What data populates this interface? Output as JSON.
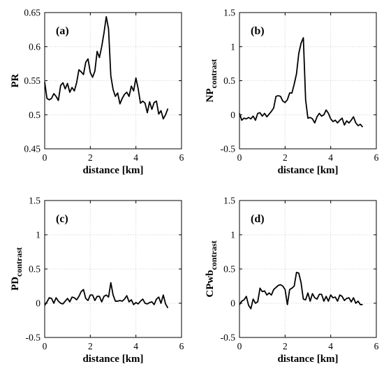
{
  "chart_data": [
    {
      "type": "line",
      "panel_label": "(a)",
      "xlabel": "distance [km]",
      "ylabel": "PR",
      "ylabel_sub": "",
      "xlim": [
        0,
        6
      ],
      "ylim": [
        0.45,
        0.65
      ],
      "xticks": [
        "0",
        "2",
        "4",
        "6"
      ],
      "yticks": [
        "0.45",
        "0.5",
        "0.55",
        "0.6",
        "0.65"
      ],
      "grid": true,
      "x": [
        0,
        0.1,
        0.2,
        0.3,
        0.4,
        0.5,
        0.6,
        0.7,
        0.8,
        0.9,
        1.0,
        1.1,
        1.2,
        1.3,
        1.4,
        1.5,
        1.6,
        1.7,
        1.8,
        1.9,
        2.0,
        2.1,
        2.2,
        2.3,
        2.4,
        2.5,
        2.6,
        2.7,
        2.8,
        2.9,
        3.0,
        3.1,
        3.2,
        3.3,
        3.4,
        3.5,
        3.6,
        3.7,
        3.8,
        3.9,
        4.0,
        4.1,
        4.2,
        4.3,
        4.4,
        4.5,
        4.6,
        4.7,
        4.8,
        4.9,
        5.0,
        5.1,
        5.2,
        5.3,
        5.4
      ],
      "y": [
        0.548,
        0.524,
        0.522,
        0.524,
        0.531,
        0.527,
        0.521,
        0.543,
        0.547,
        0.538,
        0.546,
        0.533,
        0.54,
        0.535,
        0.547,
        0.566,
        0.563,
        0.559,
        0.577,
        0.582,
        0.562,
        0.555,
        0.564,
        0.593,
        0.584,
        0.6,
        0.62,
        0.644,
        0.626,
        0.557,
        0.537,
        0.527,
        0.532,
        0.516,
        0.524,
        0.53,
        0.533,
        0.527,
        0.542,
        0.535,
        0.554,
        0.538,
        0.517,
        0.52,
        0.517,
        0.503,
        0.519,
        0.508,
        0.518,
        0.52,
        0.501,
        0.506,
        0.494,
        0.5,
        0.509
      ]
    },
    {
      "type": "line",
      "panel_label": "(b)",
      "xlabel": "distance [km]",
      "ylabel": "NP",
      "ylabel_sub": "contrast",
      "xlim": [
        0,
        6
      ],
      "ylim": [
        -0.5,
        1.5
      ],
      "xticks": [
        "0",
        "2",
        "4",
        "6"
      ],
      "yticks": [
        "-0.5",
        "0",
        "0.5",
        "1",
        "1.5"
      ],
      "grid": true,
      "x": [
        0,
        0.1,
        0.2,
        0.3,
        0.4,
        0.5,
        0.6,
        0.7,
        0.8,
        0.9,
        1.0,
        1.1,
        1.2,
        1.3,
        1.4,
        1.5,
        1.6,
        1.7,
        1.8,
        1.9,
        2.0,
        2.1,
        2.2,
        2.3,
        2.4,
        2.5,
        2.6,
        2.7,
        2.8,
        2.9,
        3.0,
        3.1,
        3.2,
        3.3,
        3.4,
        3.5,
        3.6,
        3.7,
        3.8,
        3.9,
        4.0,
        4.1,
        4.2,
        4.3,
        4.4,
        4.5,
        4.6,
        4.7,
        4.8,
        4.9,
        5.0,
        5.1,
        5.2,
        5.3,
        5.4
      ],
      "y": [
        0.02,
        -0.08,
        -0.05,
        -0.06,
        -0.04,
        -0.06,
        -0.02,
        -0.08,
        0.02,
        0.03,
        -0.02,
        0.02,
        -0.03,
        0.01,
        0.05,
        0.1,
        0.27,
        0.28,
        0.27,
        0.2,
        0.18,
        0.22,
        0.32,
        0.32,
        0.45,
        0.6,
        0.9,
        1.05,
        1.13,
        0.22,
        -0.05,
        -0.04,
        -0.06,
        -0.12,
        -0.03,
        0.02,
        -0.02,
        0.0,
        0.07,
        0.02,
        -0.06,
        -0.1,
        -0.08,
        -0.12,
        -0.08,
        -0.05,
        -0.15,
        -0.09,
        -0.12,
        -0.08,
        -0.03,
        -0.12,
        -0.16,
        -0.14,
        -0.18
      ]
    },
    {
      "type": "line",
      "panel_label": "(c)",
      "xlabel": "distance [km]",
      "ylabel": "PD",
      "ylabel_sub": "contrast",
      "xlim": [
        0,
        6
      ],
      "ylim": [
        -0.5,
        1.5
      ],
      "xticks": [
        "0",
        "2",
        "4",
        "6"
      ],
      "yticks": [
        "-0.5",
        "0",
        "0.5",
        "1",
        "1.5"
      ],
      "grid": true,
      "x": [
        0,
        0.1,
        0.2,
        0.3,
        0.4,
        0.5,
        0.6,
        0.7,
        0.8,
        0.9,
        1.0,
        1.1,
        1.2,
        1.3,
        1.4,
        1.5,
        1.6,
        1.7,
        1.8,
        1.9,
        2.0,
        2.1,
        2.2,
        2.3,
        2.4,
        2.5,
        2.6,
        2.7,
        2.8,
        2.9,
        3.0,
        3.1,
        3.2,
        3.3,
        3.4,
        3.5,
        3.6,
        3.7,
        3.8,
        3.9,
        4.0,
        4.1,
        4.2,
        4.3,
        4.4,
        4.5,
        4.6,
        4.7,
        4.8,
        4.9,
        5.0,
        5.1,
        5.2,
        5.3,
        5.4
      ],
      "y": [
        -0.03,
        0.02,
        0.08,
        0.07,
        0.0,
        0.08,
        0.03,
        0.0,
        -0.01,
        0.03,
        0.07,
        0.02,
        0.09,
        0.08,
        0.05,
        0.1,
        0.17,
        0.2,
        0.07,
        0.04,
        0.12,
        0.12,
        0.04,
        0.1,
        0.1,
        0.02,
        0.1,
        0.12,
        0.09,
        0.3,
        0.12,
        0.03,
        0.03,
        0.04,
        0.03,
        0.06,
        0.11,
        0.02,
        0.05,
        -0.02,
        0.01,
        -0.01,
        0.03,
        0.06,
        0.0,
        -0.01,
        0.01,
        0.02,
        -0.02,
        0.06,
        0.09,
        0.0,
        0.12,
        -0.01,
        -0.07
      ]
    },
    {
      "type": "line",
      "panel_label": "(d)",
      "xlabel": "distance [km]",
      "ylabel": "CPwb",
      "ylabel_sub": "contrast",
      "xlim": [
        0,
        6
      ],
      "ylim": [
        -0.5,
        1.5
      ],
      "xticks": [
        "0",
        "2",
        "4",
        "6"
      ],
      "yticks": [
        "-0.5",
        "0",
        "0.5",
        "1",
        "1.5"
      ],
      "grid": true,
      "x": [
        0,
        0.1,
        0.2,
        0.3,
        0.4,
        0.5,
        0.6,
        0.7,
        0.8,
        0.9,
        1.0,
        1.1,
        1.2,
        1.3,
        1.4,
        1.5,
        1.6,
        1.7,
        1.8,
        1.9,
        2.0,
        2.1,
        2.2,
        2.3,
        2.4,
        2.5,
        2.6,
        2.7,
        2.8,
        2.9,
        3.0,
        3.1,
        3.2,
        3.3,
        3.4,
        3.5,
        3.6,
        3.7,
        3.8,
        3.9,
        4.0,
        4.1,
        4.2,
        4.3,
        4.4,
        4.5,
        4.6,
        4.7,
        4.8,
        4.9,
        5.0,
        5.1,
        5.2,
        5.3,
        5.4
      ],
      "y": [
        -0.02,
        0.03,
        0.05,
        0.1,
        -0.03,
        -0.08,
        0.06,
        0.0,
        0.02,
        0.22,
        0.17,
        0.18,
        0.12,
        0.15,
        0.12,
        0.2,
        0.23,
        0.26,
        0.27,
        0.25,
        0.2,
        -0.02,
        0.2,
        0.22,
        0.25,
        0.45,
        0.44,
        0.3,
        0.06,
        0.05,
        0.15,
        0.03,
        0.14,
        0.08,
        0.06,
        0.13,
        0.13,
        0.03,
        0.1,
        0.03,
        0.12,
        0.08,
        0.09,
        0.03,
        0.12,
        0.1,
        0.04,
        0.07,
        0.08,
        0.02,
        0.08,
        0.0,
        0.03,
        -0.02,
        -0.02
      ]
    }
  ]
}
